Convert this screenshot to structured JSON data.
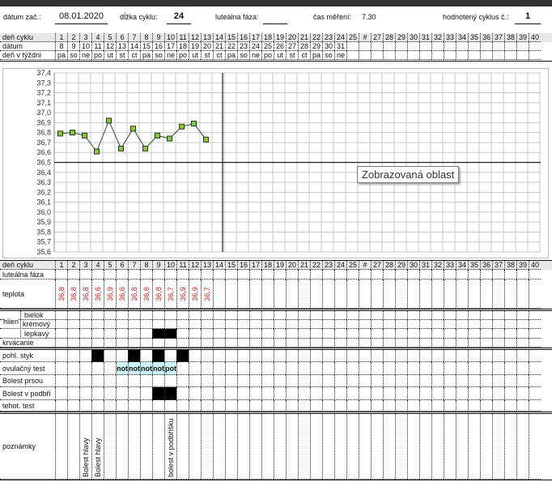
{
  "header": {
    "start_date_label": "dátum zač.:",
    "start_date": "08.01.2020",
    "cycle_length_label": "dĺžka cyklu:",
    "cycle_length": "24",
    "luteal_label": "luteálna fáza:",
    "luteal_value": "",
    "measure_time_label": "čas měření:",
    "measure_time": "7.30",
    "cycle_no_label": "hodnotený cyklus č.:",
    "cycle_no": "1"
  },
  "grid_top": {
    "labels": [
      "deň cyklu",
      "dátum",
      "deň v týždni"
    ],
    "days": [
      "1",
      "2",
      "3",
      "4",
      "5",
      "6",
      "7",
      "8",
      "9",
      "10",
      "11",
      "12",
      "13",
      "14",
      "15",
      "16",
      "17",
      "18",
      "19",
      "20",
      "21",
      "22",
      "23",
      "24",
      "25",
      "#",
      "27",
      "28",
      "29",
      "30",
      "31",
      "32",
      "33",
      "34",
      "35",
      "36",
      "37",
      "38",
      "39",
      "40"
    ],
    "dates": [
      "8",
      "9",
      "10",
      "11",
      "12",
      "13",
      "14",
      "15",
      "16",
      "17",
      "18",
      "19",
      "20",
      "21",
      "22",
      "23",
      "24",
      "25",
      "26",
      "27",
      "28",
      "29",
      "30",
      "31"
    ],
    "weekdays": [
      "pa",
      "so",
      "ne",
      "po",
      "ut",
      "st",
      "ct",
      "pa",
      "so",
      "ne",
      "po",
      "ut",
      "st",
      "ct",
      "pa",
      "so",
      "ne",
      "po",
      "ut",
      "st",
      "ct",
      "pa",
      "so",
      "ne"
    ]
  },
  "chart_data": {
    "type": "line",
    "y_ticks": [
      "37,4",
      "37,3",
      "37,2",
      "37,1",
      "37,0",
      "36,9",
      "36,8",
      "36,7",
      "36,6",
      "36,5",
      "36,4",
      "36,3",
      "36,2",
      "36,1",
      "36,0",
      "35,9",
      "35,8",
      "35,7",
      "35,6"
    ],
    "ylim": [
      35.6,
      37.4
    ],
    "x": [
      1,
      2,
      3,
      4,
      5,
      6,
      7,
      8,
      9,
      10,
      11,
      12,
      13
    ],
    "values": [
      36.79,
      36.8,
      36.77,
      36.61,
      36.92,
      36.64,
      36.84,
      36.64,
      36.77,
      36.74,
      36.86,
      36.89,
      36.73
    ],
    "baseline": 36.5,
    "divider_after_day": 14,
    "grid": true,
    "marker_color": "#8cc63f",
    "line_color": "#2f4f2f",
    "tooltip": "Zobrazovaná oblast"
  },
  "grid_bottom": {
    "labels": {
      "day": "deň cyklu",
      "luteal": "luteálna fáza",
      "temp": "teplota",
      "mucus": "hlien",
      "egg": "bielok",
      "creamy": "krémový",
      "sticky": "lepkavý",
      "bleeding": "krvácanie",
      "intercourse": "pohl. styk",
      "ovulation": "ovulačný test",
      "breast": "Bolest prsou",
      "abdomen": "Bolest v podbři",
      "pregnancy": "tehot. test",
      "notes": "poznámky"
    },
    "temps": [
      "36,8",
      "36,8",
      "36,8",
      "36,6",
      "36,9",
      "36,6",
      "36,8",
      "36,6",
      "36,8",
      "36,7",
      "36,9",
      "36,9",
      "36,7"
    ],
    "sticky_days": [
      9,
      10
    ],
    "intercourse_days": [
      4,
      7,
      9,
      11
    ],
    "abdomen_days": [
      9,
      10
    ],
    "ovulation": {
      "6": "not",
      "7": "not",
      "8": "not",
      "9": "not",
      "10": "pot"
    },
    "notes": {
      "3": "Bolest hlavy",
      "4": "Bolest hlavy",
      "10": "bolest v podbřišku"
    }
  }
}
